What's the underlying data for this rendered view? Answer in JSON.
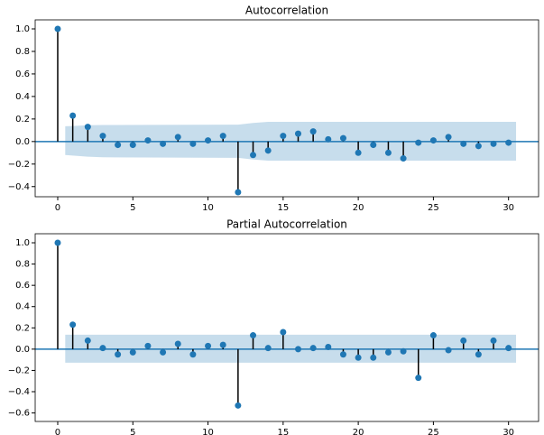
{
  "chart_data": [
    {
      "type": "stem",
      "title": "Autocorrelation",
      "color": "#1f77b4",
      "x": [
        0,
        1,
        2,
        3,
        4,
        5,
        6,
        7,
        8,
        9,
        10,
        11,
        12,
        13,
        14,
        15,
        16,
        17,
        18,
        19,
        20,
        21,
        22,
        23,
        24,
        25,
        26,
        27,
        28,
        29,
        30
      ],
      "values": [
        1,
        0.23,
        0.13,
        0.05,
        -0.03,
        -0.03,
        0.01,
        -0.02,
        0.04,
        -0.02,
        0.01,
        0.05,
        -0.45,
        -0.12,
        -0.08,
        0.05,
        0.07,
        0.09,
        0.02,
        0.03,
        -0.1,
        -0.03,
        -0.1,
        -0.15,
        -0.01,
        0.01,
        0.04,
        -0.02,
        -0.04,
        -0.02,
        -0.01
      ],
      "band": {
        "x": [
          0.5,
          1,
          2,
          3,
          12,
          13,
          14,
          30.5
        ],
        "upper": [
          0.136,
          0.138,
          0.145,
          0.147,
          0.15,
          0.165,
          0.175,
          0.175
        ],
        "lower": [
          -0.12,
          -0.125,
          -0.135,
          -0.14,
          -0.145,
          -0.16,
          -0.17,
          -0.17
        ]
      },
      "xlim": [
        -1.5,
        32
      ],
      "ylim": [
        -0.49,
        1.08
      ],
      "xticks": [
        0,
        5,
        10,
        15,
        20,
        25,
        30
      ],
      "yticks": [
        {
          "value": -0.4,
          "label": "−0.4"
        },
        {
          "value": -0.2,
          "label": "−0.2"
        },
        {
          "value": 0,
          "label": "0.0"
        },
        {
          "value": 0.2,
          "label": "0.2"
        },
        {
          "value": 0.4,
          "label": "0.4"
        },
        {
          "value": 0.6,
          "label": "0.6"
        },
        {
          "value": 0.8,
          "label": "0.8"
        },
        {
          "value": 1,
          "label": "1.0"
        }
      ]
    },
    {
      "type": "stem",
      "title": "Partial Autocorrelation",
      "color": "#1f77b4",
      "x": [
        0,
        1,
        2,
        3,
        4,
        5,
        6,
        7,
        8,
        9,
        10,
        11,
        12,
        13,
        14,
        15,
        16,
        17,
        18,
        19,
        20,
        21,
        22,
        23,
        24,
        25,
        26,
        27,
        28,
        29,
        30
      ],
      "values": [
        1,
        0.23,
        0.08,
        0.01,
        -0.05,
        -0.03,
        0.03,
        -0.03,
        0.05,
        -0.05,
        0.03,
        0.04,
        -0.53,
        0.13,
        0.01,
        0.16,
        0,
        0.01,
        0.02,
        -0.05,
        -0.08,
        -0.08,
        -0.03,
        -0.02,
        -0.27,
        0.13,
        -0.01,
        0.08,
        -0.05,
        0.08,
        0.01
      ],
      "band": {
        "x": [
          0.5,
          30.5
        ],
        "upper": [
          0.136,
          0.136
        ],
        "lower": [
          -0.127,
          -0.127
        ]
      },
      "xlim": [
        -1.5,
        32
      ],
      "ylim": [
        -0.68,
        1.085
      ],
      "xticks": [
        0,
        5,
        10,
        15,
        20,
        25,
        30
      ],
      "yticks": [
        {
          "value": -0.6,
          "label": "−0.6"
        },
        {
          "value": -0.4,
          "label": "−0.4"
        },
        {
          "value": -0.2,
          "label": "−0.2"
        },
        {
          "value": 0,
          "label": "0.0"
        },
        {
          "value": 0.2,
          "label": "0.2"
        },
        {
          "value": 0.4,
          "label": "0.4"
        },
        {
          "value": 0.6,
          "label": "0.6"
        },
        {
          "value": 0.8,
          "label": "0.8"
        },
        {
          "value": 1,
          "label": "1.0"
        }
      ]
    }
  ]
}
